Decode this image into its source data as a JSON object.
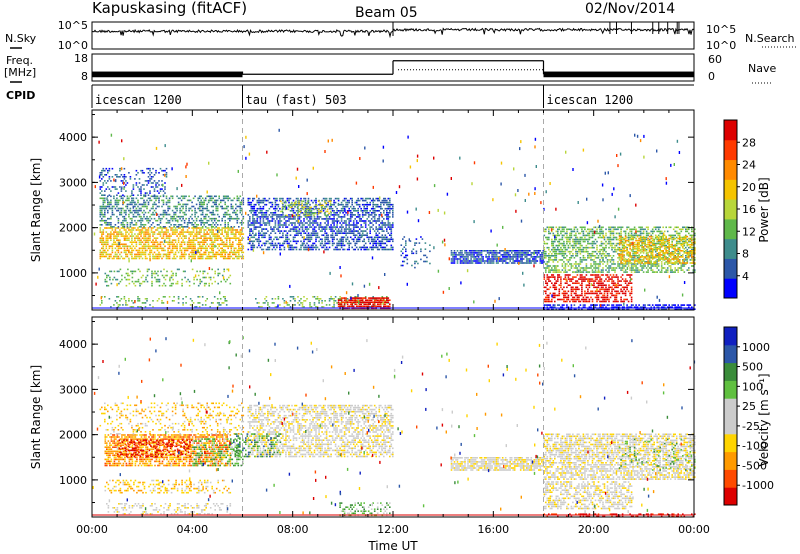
{
  "header": {
    "station": "Kapuskasing (fitACF)",
    "beam": "Beam 05",
    "date": "02/Nov/2014"
  },
  "chart_data": [
    {
      "name": "noise-panel",
      "type": "line",
      "left_label": "N.Sky",
      "right_label": "N.Search",
      "left_ticks": [
        "10^5",
        "10^0"
      ],
      "right_ticks": [
        "10^5",
        "10^0"
      ],
      "sky_level_description": "near 10^5 throughout, slight step up at 12:00",
      "x_range_hours": [
        0,
        24
      ]
    },
    {
      "name": "freq-panel",
      "type": "line",
      "left_label": "Freq.",
      "left_unit": "[MHz]",
      "left_ticks": [
        "18",
        "8"
      ],
      "right_label": "Nave",
      "right_ticks": [
        "60",
        "0"
      ],
      "freq_segments": [
        {
          "start": 0,
          "end": 6,
          "freq_low": 10.5,
          "freq_high": 11.5,
          "oscillating": true
        },
        {
          "start": 6,
          "end": 12,
          "freq_low": 10.5,
          "freq_high": 10.5,
          "oscillating": false
        },
        {
          "start": 12,
          "end": 18,
          "freq_low": 15.5,
          "freq_high": 15.5,
          "oscillating": false
        },
        {
          "start": 18,
          "end": 24,
          "freq_low": 10.5,
          "freq_high": 11.5,
          "oscillating": true
        }
      ],
      "nave_segments": [
        {
          "start": 12.2,
          "end": 18,
          "value": 25
        }
      ]
    },
    {
      "name": "cpid-panel",
      "type": "table",
      "label": "CPID",
      "segments": [
        {
          "start": 0,
          "end": 6,
          "text": "icescan 1200"
        },
        {
          "start": 6,
          "end": 18,
          "text": "tau (fast) 503"
        },
        {
          "start": 18,
          "end": 24,
          "text": "icescan 1200"
        }
      ]
    },
    {
      "name": "power-panel",
      "type": "heatmap",
      "ylabel": "Slant Range [km]",
      "yticks": [
        1000,
        2000,
        3000,
        4000
      ],
      "ylim": [
        180,
        4600
      ],
      "colorbar_label": "Power [dB]",
      "colorbar_ticks": [
        "28",
        "24",
        "20",
        "16",
        "12",
        "8",
        "4"
      ],
      "colors": [
        "#0000ff",
        "#2c57a8",
        "#3e8c8c",
        "#5fb84a",
        "#b8d63a",
        "#f5c400",
        "#ff8a00",
        "#ff3a00",
        "#dd0000"
      ],
      "regions": [
        {
          "t0": 0.3,
          "t1": 6.0,
          "r0": 1300,
          "r1": 2000,
          "c": 5,
          "d": 0.65
        },
        {
          "t0": 0.3,
          "t1": 6.0,
          "r0": 2000,
          "r1": 2700,
          "c": 2,
          "d": 0.45
        },
        {
          "t0": 0.3,
          "t1": 3.0,
          "r0": 2700,
          "r1": 3300,
          "c": 1,
          "d": 0.25
        },
        {
          "t0": 0.5,
          "t1": 5.5,
          "r0": 700,
          "r1": 1100,
          "c": 3,
          "d": 0.25
        },
        {
          "t0": 0.3,
          "t1": 5.5,
          "r0": 230,
          "r1": 500,
          "c": 3,
          "d": 0.2
        },
        {
          "t0": 6.2,
          "t1": 12.0,
          "r0": 1500,
          "r1": 2650,
          "c": 1,
          "d": 0.55
        },
        {
          "t0": 7.5,
          "t1": 9.5,
          "r0": 2250,
          "r1": 2600,
          "c": 4,
          "d": 0.35
        },
        {
          "t0": 6.5,
          "t1": 11.8,
          "r0": 230,
          "r1": 500,
          "c": 3,
          "d": 0.3
        },
        {
          "t0": 9.8,
          "t1": 11.9,
          "r0": 200,
          "r1": 450,
          "c": 8,
          "d": 0.85
        },
        {
          "t0": 12.3,
          "t1": 13.5,
          "r0": 1100,
          "r1": 1800,
          "c": 1,
          "d": 0.15
        },
        {
          "t0": 14.3,
          "t1": 18.0,
          "r0": 1200,
          "r1": 1500,
          "c": 1,
          "d": 0.8
        },
        {
          "t0": 18.0,
          "t1": 24.0,
          "r0": 1000,
          "r1": 2000,
          "c": 3,
          "d": 0.55
        },
        {
          "t0": 21.0,
          "t1": 24.0,
          "r0": 1200,
          "r1": 1800,
          "c": 5,
          "d": 0.55
        },
        {
          "t0": 18.0,
          "t1": 21.5,
          "r0": 350,
          "r1": 950,
          "c": 8,
          "d": 0.55
        },
        {
          "t0": 18.0,
          "t1": 24.0,
          "r0": 180,
          "r1": 300,
          "c": 0,
          "d": 0.6
        }
      ]
    },
    {
      "name": "velocity-panel",
      "type": "heatmap",
      "xlabel": "Time UT",
      "xticks": [
        "00:00",
        "04:00",
        "08:00",
        "12:00",
        "16:00",
        "20:00",
        "00:00"
      ],
      "ylabel": "Slant Range [km]",
      "yticks": [
        1000,
        2000,
        3000,
        4000
      ],
      "ylim": [
        180,
        4600
      ],
      "colorbar_label": "Velocity [m s⁻¹]",
      "colorbar_ticks": [
        "1000",
        "500",
        "100",
        "25",
        "-25",
        "-100",
        "-500",
        "-1000"
      ],
      "colors": [
        "#dd0000",
        "#ff4a00",
        "#ff9a00",
        "#ffd400",
        "#cccccc",
        "#cccccc",
        "#60c040",
        "#3a8c3a",
        "#2c57a8",
        "#1020c0"
      ],
      "regions": [
        {
          "t0": 0.5,
          "t1": 5.5,
          "r0": 1300,
          "r1": 2000,
          "c": 2,
          "d": 0.7
        },
        {
          "t0": 1.0,
          "t1": 4.0,
          "r0": 1500,
          "r1": 1900,
          "c": 0,
          "d": 0.35
        },
        {
          "t0": 0.3,
          "t1": 6.0,
          "r0": 2000,
          "r1": 2700,
          "c": 3,
          "d": 0.2
        },
        {
          "t0": 4.0,
          "t1": 6.0,
          "r0": 1300,
          "r1": 1900,
          "c": 6,
          "d": 0.35
        },
        {
          "t0": 0.5,
          "t1": 5.5,
          "r0": 700,
          "r1": 1000,
          "c": 3,
          "d": 0.3
        },
        {
          "t0": 0.5,
          "t1": 5.5,
          "r0": 230,
          "r1": 500,
          "c": 4,
          "d": 0.3
        },
        {
          "t0": 6.2,
          "t1": 12.0,
          "r0": 1500,
          "r1": 2650,
          "c": 4,
          "d": 0.55
        },
        {
          "t0": 5.5,
          "t1": 7.5,
          "r0": 1500,
          "r1": 2000,
          "c": 7,
          "d": 0.3
        },
        {
          "t0": 9.8,
          "t1": 11.9,
          "r0": 200,
          "r1": 500,
          "c": 6,
          "d": 0.4
        },
        {
          "t0": 14.3,
          "t1": 18.0,
          "r0": 1200,
          "r1": 1500,
          "c": 4,
          "d": 0.8
        },
        {
          "t0": 18.0,
          "t1": 24.0,
          "r0": 1000,
          "r1": 2000,
          "c": 4,
          "d": 0.65
        },
        {
          "t0": 18.0,
          "t1": 21.5,
          "r0": 350,
          "r1": 950,
          "c": 4,
          "d": 0.55
        },
        {
          "t0": 21.0,
          "t1": 24.0,
          "r0": 1200,
          "r1": 1900,
          "c": 6,
          "d": 0.12
        },
        {
          "t0": 18.0,
          "t1": 24.0,
          "r0": 180,
          "r1": 260,
          "c": 0,
          "d": 0.4
        }
      ]
    }
  ]
}
